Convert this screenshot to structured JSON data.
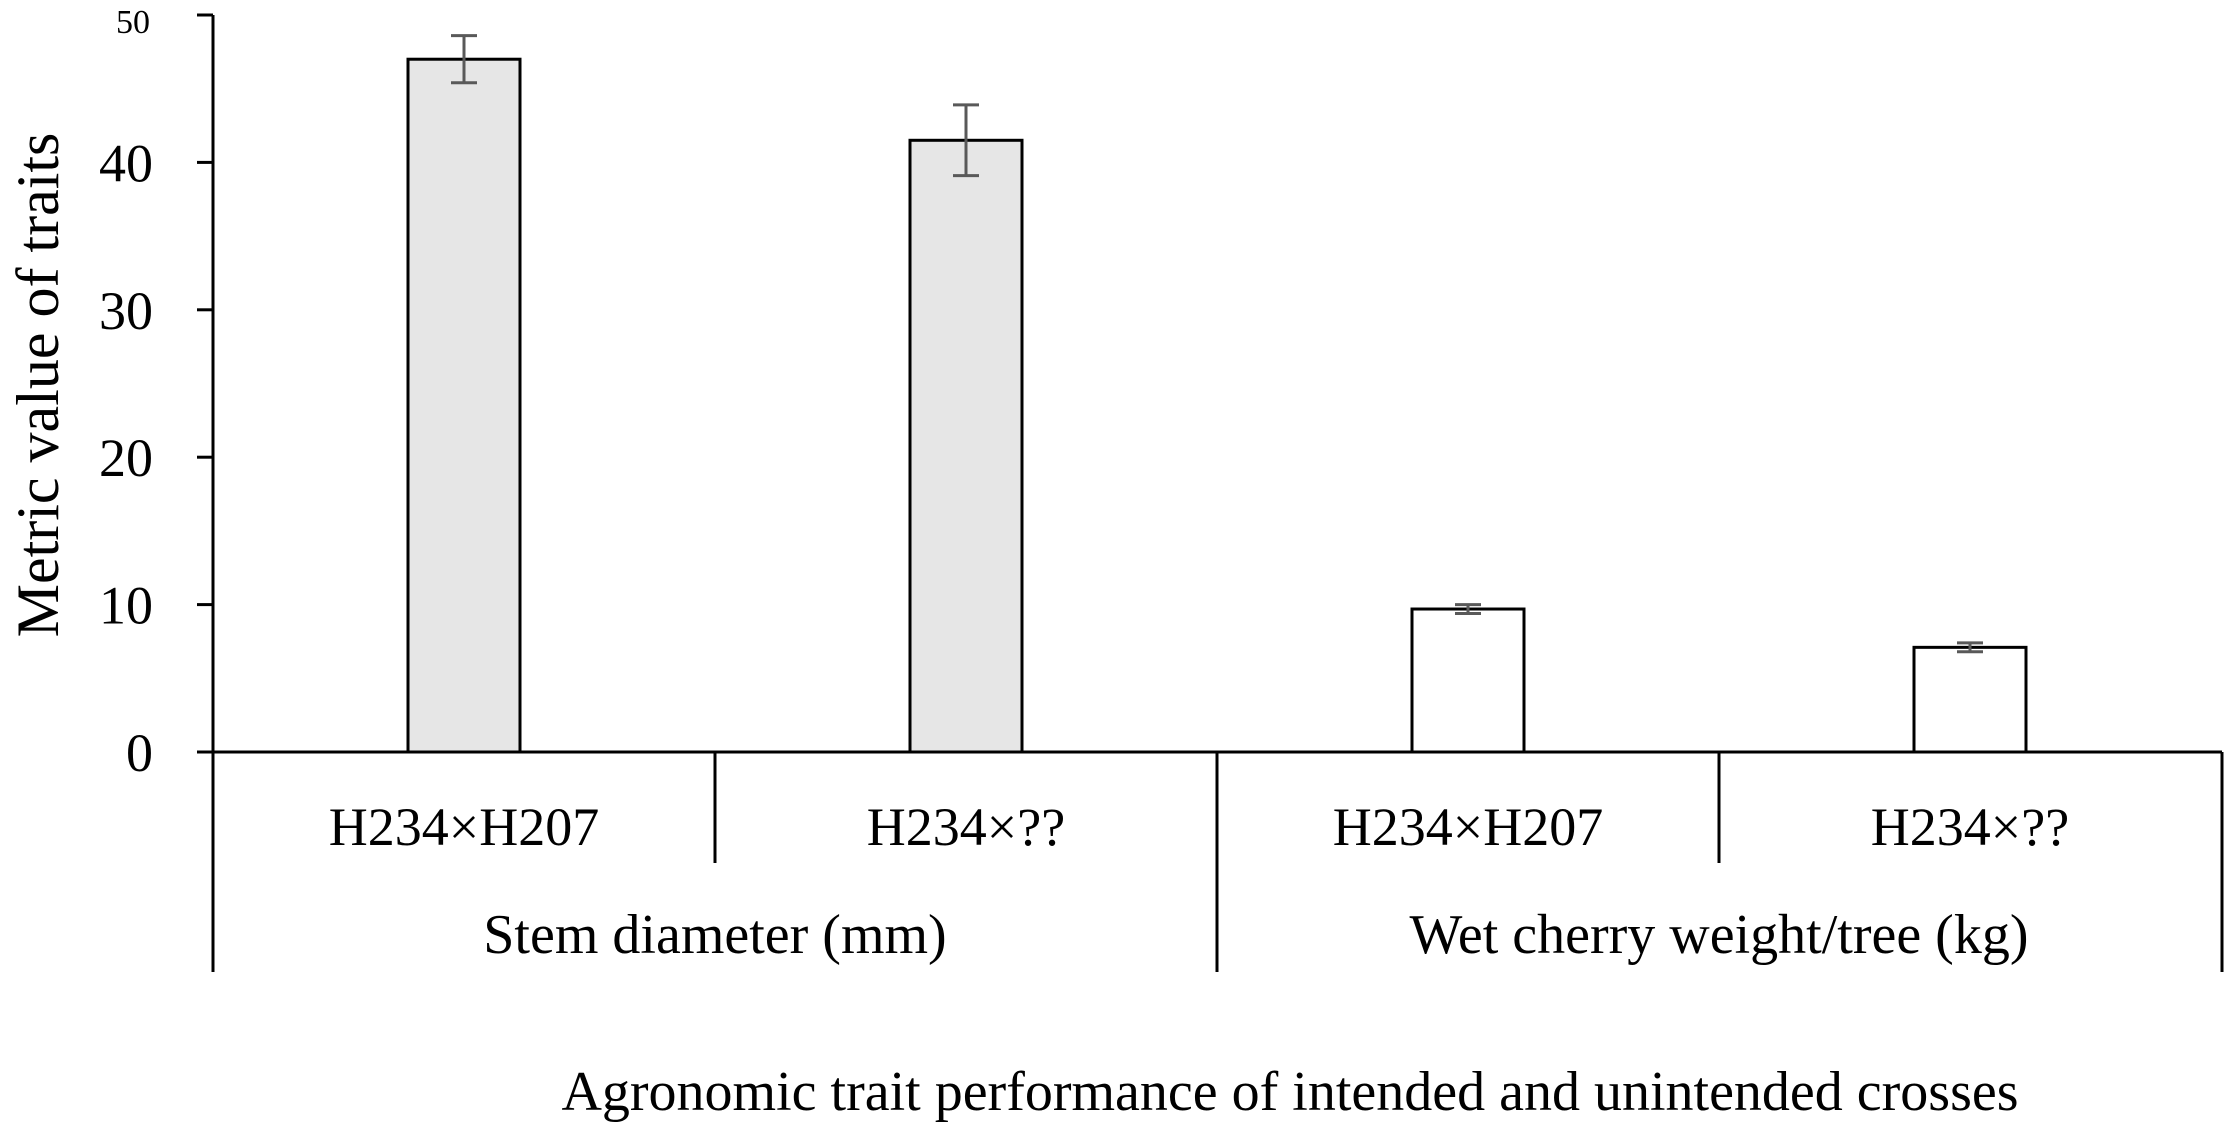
{
  "chart_data": {
    "type": "bar",
    "title": "",
    "ylabel": "Metric value of traits",
    "xlabel": "Agronomic trait performance of intended and unintended crosses",
    "ylim": [
      0,
      50
    ],
    "yticks": [
      "0",
      "10",
      "20",
      "30",
      "40",
      "50"
    ],
    "grid": false,
    "groups": [
      {
        "label": "Stem diameter (mm)",
        "fill": "#e6e6e6",
        "bars": [
          {
            "category": "H234×H207",
            "value": 47.0,
            "error": 1.6
          },
          {
            "category": "H234×??",
            "value": 41.5,
            "error": 2.4
          }
        ]
      },
      {
        "label": "Wet cherry weight/tree (kg)",
        "fill": "#ffffff",
        "bars": [
          {
            "category": "H234×H207",
            "value": 9.7,
            "error": 0.3
          },
          {
            "category": "H234×??",
            "value": 7.1,
            "error": 0.3
          }
        ]
      }
    ]
  },
  "colors": {
    "bar_stroke": "#000000",
    "error_bar": "#595959",
    "axis": "#000000"
  }
}
